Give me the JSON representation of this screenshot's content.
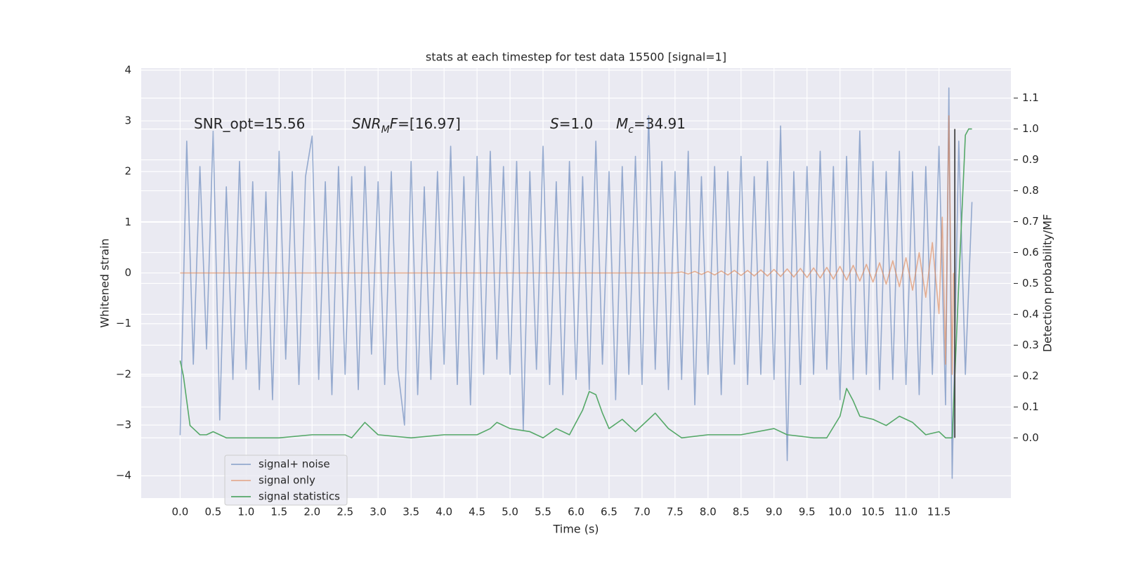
{
  "chart_data": {
    "type": "line",
    "title": "stats at each timestep for test data 15500 [signal=1]",
    "xlabel": "Time (s)",
    "ylabel": "Whitened strain",
    "y2label": "Detection probability/MF",
    "xlim": [
      -0.59,
      12.59
    ],
    "ylim": [
      -4.44,
      4.04
    ],
    "y2lim": [
      -0.195,
      1.197
    ],
    "xticks": [
      {
        "value": 0,
        "label": "0.0"
      },
      0.5,
      {
        "value": 1,
        "label": "1.0"
      },
      1.5,
      {
        "value": 2,
        "label": "2.0"
      },
      2.5,
      {
        "value": 3,
        "label": "3.0"
      },
      3.5,
      {
        "value": 4,
        "label": "4.0"
      },
      4.5,
      {
        "value": 5,
        "label": "5.0"
      },
      5.5,
      {
        "value": 6,
        "label": "6.0"
      },
      6.5,
      {
        "value": 7,
        "label": "7.0"
      },
      7.5,
      {
        "value": 8,
        "label": "8.0"
      },
      8.5,
      {
        "value": 9,
        "label": "9.0"
      },
      9.5,
      {
        "value": 10,
        "label": "10.0"
      },
      10.5,
      {
        "value": 11,
        "label": "11.0"
      },
      11.5
    ],
    "yticks": [
      {
        "value": -4,
        "label": "−4"
      },
      {
        "value": -3,
        "label": "−3"
      },
      {
        "value": -2,
        "label": "−2"
      },
      {
        "value": -1,
        "label": "−1"
      },
      0,
      1,
      2,
      3,
      4
    ],
    "y2ticks": [
      {
        "value": 0,
        "label": "0.0"
      },
      0.1,
      0.2,
      0.3,
      0.4,
      0.5,
      0.6,
      0.7,
      0.8,
      0.9,
      {
        "value": 1,
        "label": "1.0"
      },
      1.1
    ],
    "grid": true,
    "legend": "lower left",
    "annotations": [
      [
        {
          "text": "SNR_opt=15.56"
        }
      ],
      [
        {
          "text": "SNR",
          "italic": true
        },
        {
          "text": "M",
          "italic": true,
          "sub": true
        },
        {
          "text": "F",
          "italic": true
        },
        {
          "text": "=[16.97]"
        }
      ],
      [
        {
          "text": "S",
          "italic": true
        },
        {
          "text": "=1.0"
        }
      ],
      [
        {
          "text": "M",
          "italic": true
        },
        {
          "text": "c",
          "italic": true,
          "sub": true
        },
        {
          "text": "=34.91"
        }
      ]
    ],
    "series": [
      {
        "name": "signal+ noise",
        "color": "#4c72b0",
        "alpha": 0.55,
        "axis": "y",
        "x": [
          0.0,
          0.1,
          0.2,
          0.3,
          0.4,
          0.5,
          0.6,
          0.7,
          0.8,
          0.9,
          1.0,
          1.1,
          1.2,
          1.3,
          1.4,
          1.5,
          1.6,
          1.7,
          1.8,
          1.9,
          2.0,
          2.1,
          2.2,
          2.3,
          2.4,
          2.5,
          2.6,
          2.7,
          2.8,
          2.9,
          3.0,
          3.1,
          3.2,
          3.3,
          3.4,
          3.5,
          3.6,
          3.7,
          3.8,
          3.9,
          4.0,
          4.1,
          4.2,
          4.3,
          4.4,
          4.5,
          4.6,
          4.7,
          4.8,
          4.9,
          5.0,
          5.1,
          5.2,
          5.3,
          5.4,
          5.5,
          5.6,
          5.7,
          5.8,
          5.9,
          6.0,
          6.1,
          6.2,
          6.3,
          6.4,
          6.5,
          6.6,
          6.7,
          6.8,
          6.9,
          7.0,
          7.1,
          7.2,
          7.3,
          7.4,
          7.5,
          7.6,
          7.7,
          7.8,
          7.9,
          8.0,
          8.1,
          8.2,
          8.3,
          8.4,
          8.5,
          8.6,
          8.7,
          8.8,
          8.9,
          9.0,
          9.1,
          9.2,
          9.3,
          9.4,
          9.5,
          9.6,
          9.7,
          9.8,
          9.9,
          10.0,
          10.1,
          10.2,
          10.3,
          10.4,
          10.5,
          10.6,
          10.7,
          10.8,
          10.9,
          11.0,
          11.1,
          11.2,
          11.3,
          11.4,
          11.5,
          11.6,
          11.65,
          11.7,
          11.8,
          11.9,
          12.0
        ],
        "values": [
          -3.2,
          2.6,
          -1.8,
          2.1,
          -1.5,
          2.8,
          -2.9,
          1.7,
          -2.1,
          2.2,
          -1.9,
          1.8,
          -2.3,
          1.6,
          -2.5,
          2.4,
          -1.7,
          2.0,
          -2.2,
          1.9,
          2.7,
          -2.1,
          1.8,
          -2.4,
          2.1,
          -2.0,
          1.9,
          -2.3,
          2.1,
          -1.6,
          1.8,
          -2.2,
          2.0,
          -1.9,
          -3.0,
          2.2,
          -2.4,
          1.7,
          -2.1,
          2.0,
          -1.8,
          2.5,
          -2.2,
          1.9,
          -2.6,
          2.3,
          -2.0,
          2.4,
          -1.7,
          2.1,
          -2.0,
          2.2,
          -3.1,
          2.0,
          -1.9,
          2.5,
          -2.2,
          1.8,
          -2.4,
          2.2,
          -2.1,
          1.9,
          -2.3,
          2.6,
          -1.8,
          2.0,
          -2.5,
          2.1,
          -2.0,
          2.3,
          -2.2,
          3.1,
          -1.9,
          2.2,
          -2.3,
          2.0,
          -2.1,
          2.4,
          -2.6,
          1.9,
          -2.0,
          2.1,
          -2.4,
          2.0,
          -1.8,
          2.3,
          -2.2,
          1.9,
          -2.0,
          2.2,
          -2.1,
          2.9,
          -3.7,
          2.0,
          -2.2,
          2.1,
          -2.0,
          2.4,
          -1.9,
          2.1,
          -2.5,
          2.3,
          -2.1,
          2.8,
          -2.0,
          2.2,
          -2.3,
          2.0,
          -2.1,
          2.4,
          -2.2,
          2.0,
          -2.4,
          2.1,
          -2.0,
          2.5,
          -2.6,
          3.65,
          -4.05,
          2.6,
          -2.0,
          1.4
        ]
      },
      {
        "name": "signal only",
        "color": "#dd8452",
        "alpha": 0.6,
        "axis": "y",
        "x": [
          0.0,
          7.5,
          7.6,
          7.7,
          7.8,
          7.9,
          8.0,
          8.1,
          8.2,
          8.3,
          8.4,
          8.5,
          8.6,
          8.7,
          8.8,
          8.9,
          9.0,
          9.1,
          9.2,
          9.3,
          9.4,
          9.5,
          9.6,
          9.7,
          9.8,
          9.9,
          10.0,
          10.1,
          10.2,
          10.3,
          10.4,
          10.5,
          10.6,
          10.7,
          10.8,
          10.9,
          11.0,
          11.1,
          11.2,
          11.3,
          11.4,
          11.5,
          11.55,
          11.6,
          11.65,
          11.7,
          11.72
        ],
        "values": [
          0,
          0,
          0.02,
          -0.02,
          0.03,
          -0.03,
          0.03,
          -0.04,
          0.04,
          -0.04,
          0.05,
          -0.05,
          0.05,
          -0.06,
          0.06,
          -0.06,
          0.07,
          -0.07,
          0.08,
          -0.08,
          0.09,
          -0.09,
          0.1,
          -0.1,
          0.11,
          -0.12,
          0.13,
          -0.14,
          0.15,
          -0.16,
          0.17,
          -0.18,
          0.2,
          -0.22,
          0.24,
          -0.27,
          0.3,
          -0.34,
          0.4,
          -0.48,
          0.6,
          -0.8,
          1.1,
          -1.8,
          3.1,
          -2.0,
          0.0
        ]
      },
      {
        "name": "signal statistics",
        "color": "#55a868",
        "alpha": 1,
        "axis": "y2",
        "x": [
          0.0,
          0.05,
          0.15,
          0.2,
          0.3,
          0.4,
          0.5,
          0.7,
          1.0,
          1.5,
          2.0,
          2.5,
          2.6,
          2.8,
          3.0,
          3.5,
          4.0,
          4.5,
          4.7,
          4.8,
          5.0,
          5.3,
          5.5,
          5.7,
          5.9,
          6.1,
          6.2,
          6.3,
          6.4,
          6.5,
          6.7,
          6.9,
          7.1,
          7.2,
          7.4,
          7.6,
          8.0,
          8.5,
          9.0,
          9.2,
          9.6,
          9.8,
          10.0,
          10.1,
          10.2,
          10.3,
          10.5,
          10.7,
          10.9,
          11.1,
          11.3,
          11.5,
          11.6,
          11.7,
          11.8,
          11.9,
          11.95,
          12.0
        ],
        "values": [
          0.25,
          0.2,
          0.04,
          0.03,
          0.01,
          0.01,
          0.02,
          0.0,
          0.0,
          0.0,
          0.01,
          0.01,
          0.0,
          0.05,
          0.01,
          0.0,
          0.01,
          0.01,
          0.03,
          0.05,
          0.03,
          0.02,
          0.0,
          0.03,
          0.01,
          0.09,
          0.15,
          0.14,
          0.08,
          0.03,
          0.06,
          0.02,
          0.06,
          0.08,
          0.03,
          0.0,
          0.01,
          0.01,
          0.03,
          0.01,
          0.0,
          0.0,
          0.07,
          0.16,
          0.12,
          0.07,
          0.06,
          0.04,
          0.07,
          0.05,
          0.01,
          0.02,
          0.0,
          0.0,
          0.5,
          0.98,
          1.0,
          1.0
        ]
      }
    ],
    "vlines": [
      {
        "x": 11.74,
        "ymin": 0,
        "ymax": 1,
        "axis": "y2",
        "color": "#444444"
      }
    ]
  }
}
